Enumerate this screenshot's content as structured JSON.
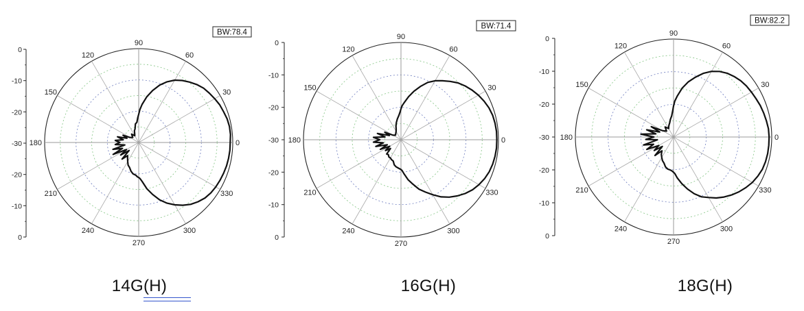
{
  "chart_data": [
    {
      "type": "polar",
      "title": "14G(H)",
      "bw_label": "BW:78.4",
      "radial_ticks": [
        "0",
        "-10",
        "-20",
        "-30",
        "-20",
        "-10",
        "0"
      ],
      "radial_range": [
        -30,
        0
      ],
      "angle_ticks": [
        "90",
        "60",
        "30",
        "0",
        "330",
        "300",
        "270",
        "240",
        "210",
        "180",
        "150",
        "120"
      ],
      "grid": true,
      "series": [
        {
          "angles": [
            0,
            5,
            10,
            15,
            20,
            25,
            30,
            35,
            40,
            45,
            50,
            55,
            60,
            65,
            70,
            75,
            80,
            85,
            88,
            90,
            92,
            95,
            100,
            105,
            110,
            115,
            120,
            130,
            140,
            150,
            155,
            160,
            165,
            170,
            175,
            180,
            185,
            190,
            195,
            200,
            205,
            210,
            215,
            220,
            225,
            230,
            235,
            240,
            245,
            250,
            255,
            260,
            265,
            268,
            270,
            272,
            275,
            280,
            285,
            290,
            295,
            300,
            305,
            310,
            315,
            320,
            325,
            330,
            335,
            340,
            345,
            350,
            355
          ],
          "values": [
            -0.8,
            -0.6,
            -0.6,
            -0.8,
            -1.2,
            -1.5,
            -2.0,
            -2.5,
            -3.0,
            -3.8,
            -4.8,
            -5.8,
            -7.0,
            -8.6,
            -10.5,
            -12.8,
            -15.2,
            -17.8,
            -19.5,
            -21,
            -22,
            -23.5,
            -24,
            -25.5,
            -26,
            -27,
            -27.5,
            -26.5,
            -27.5,
            -26.8,
            -24.5,
            -26,
            -23,
            -25,
            -22.5,
            -24,
            -22.5,
            -25.5,
            -21.5,
            -24.5,
            -21,
            -25.5,
            -23,
            -26,
            -22.5,
            -24.5,
            -23.8,
            -23,
            -22,
            -21.5,
            -20.5,
            -19.8,
            -19.5,
            -19,
            -18.8,
            -18.5,
            -17.5,
            -15,
            -12.8,
            -10.5,
            -8.6,
            -7.0,
            -5.5,
            -4.2,
            -3.2,
            -2.4,
            -1.9,
            -1.6,
            -1.4,
            -1.2,
            -1.0,
            -0.9,
            -0.8
          ]
        }
      ]
    },
    {
      "type": "polar",
      "title": "16G(H)",
      "bw_label": "BW:71.4",
      "radial_ticks": [
        "0",
        "-10",
        "-20",
        "-30",
        "-20",
        "-10",
        "0"
      ],
      "radial_range": [
        -30,
        0
      ],
      "angle_ticks": [
        "90",
        "60",
        "30",
        "0",
        "330",
        "300",
        "270",
        "240",
        "210",
        "180",
        "150",
        "120"
      ],
      "grid": true,
      "series": [
        {
          "angles": [
            0,
            5,
            10,
            15,
            20,
            25,
            30,
            35,
            40,
            45,
            50,
            55,
            60,
            65,
            70,
            75,
            80,
            85,
            88,
            90,
            92,
            95,
            100,
            105,
            110,
            115,
            120,
            130,
            140,
            150,
            155,
            160,
            165,
            170,
            175,
            180,
            185,
            190,
            195,
            200,
            205,
            210,
            215,
            220,
            225,
            230,
            235,
            240,
            245,
            250,
            255,
            260,
            265,
            268,
            270,
            272,
            275,
            280,
            285,
            290,
            295,
            300,
            305,
            310,
            315,
            320,
            325,
            330,
            335,
            340,
            345,
            350,
            355
          ],
          "values": [
            -0.5,
            -0.5,
            -0.6,
            -0.8,
            -1.2,
            -1.8,
            -2.5,
            -3.3,
            -4.2,
            -5.2,
            -6.5,
            -7.8,
            -9.0,
            -10.5,
            -12.5,
            -14.5,
            -16.5,
            -18.5,
            -19.5,
            -20.5,
            -21.5,
            -22.5,
            -23.5,
            -24.5,
            -25.5,
            -26.5,
            -27,
            -27.5,
            -27.8,
            -27.2,
            -24.5,
            -26.2,
            -22.5,
            -25,
            -21.5,
            -23.5,
            -21.5,
            -24.5,
            -22,
            -25.5,
            -23,
            -26,
            -24.2,
            -25.8,
            -23.8,
            -24,
            -23.5,
            -23.5,
            -23.2,
            -23,
            -22,
            -21.5,
            -21.2,
            -21,
            -20.8,
            -20.5,
            -19.5,
            -17.5,
            -15.8,
            -13.8,
            -12.2,
            -10.4,
            -8.5,
            -6.9,
            -5.5,
            -4.2,
            -3.1,
            -2.3,
            -1.6,
            -1.1,
            -0.8,
            -0.6,
            -0.5
          ]
        }
      ]
    },
    {
      "type": "polar",
      "title": "18G(H)",
      "bw_label": "BW:82.2",
      "radial_ticks": [
        "0",
        "-10",
        "-20",
        "-30",
        "-20",
        "-10",
        "0"
      ],
      "radial_range": [
        -30,
        0
      ],
      "angle_ticks": [
        "90",
        "60",
        "30",
        "0",
        "330",
        "300",
        "270",
        "240",
        "210",
        "180",
        "150",
        "120"
      ],
      "grid": true,
      "series": [
        {
          "angles": [
            0,
            5,
            10,
            15,
            20,
            25,
            30,
            35,
            40,
            45,
            50,
            55,
            60,
            65,
            70,
            75,
            80,
            85,
            88,
            90,
            92,
            95,
            100,
            105,
            110,
            115,
            120,
            130,
            140,
            150,
            155,
            160,
            165,
            170,
            175,
            180,
            185,
            190,
            195,
            200,
            205,
            210,
            215,
            220,
            225,
            230,
            235,
            240,
            245,
            250,
            255,
            260,
            265,
            268,
            270,
            272,
            275,
            280,
            285,
            290,
            295,
            300,
            305,
            310,
            315,
            320,
            325,
            330,
            335,
            340,
            345,
            350,
            355
          ],
          "values": [
            -0.8,
            -0.9,
            -1.2,
            -1.5,
            -1.8,
            -2.2,
            -2.5,
            -2.8,
            -3.2,
            -3.8,
            -4.5,
            -5.5,
            -6.8,
            -8.5,
            -10.5,
            -12.5,
            -14.8,
            -17.5,
            -19.0,
            -20.5,
            -22,
            -23.5,
            -24.5,
            -25.5,
            -26,
            -26.5,
            -27,
            -26,
            -27.2,
            -26.2,
            -22.5,
            -25.5,
            -21.5,
            -24.5,
            -20,
            -24,
            -21.5,
            -25,
            -20.5,
            -23.5,
            -21,
            -24.8,
            -22.8,
            -25.5,
            -22,
            -24.5,
            -23.5,
            -22.8,
            -22,
            -21.5,
            -20.5,
            -20,
            -19.8,
            -19.5,
            -19.2,
            -18.8,
            -17.5,
            -15.5,
            -13.5,
            -11.5,
            -9.8,
            -8.6,
            -7.2,
            -6.0,
            -4.9,
            -3.9,
            -3.0,
            -2.2,
            -1.6,
            -1.1,
            -0.9,
            -0.8,
            -0.8
          ]
        }
      ]
    }
  ]
}
